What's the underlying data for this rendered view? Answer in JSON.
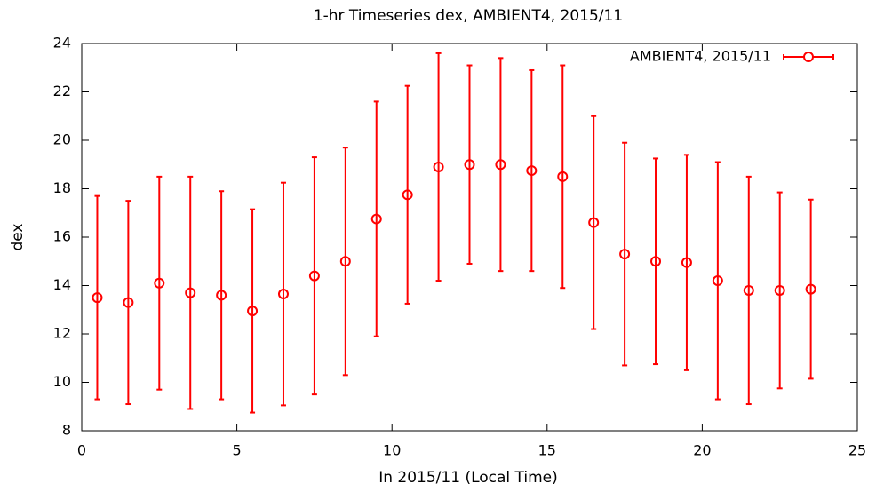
{
  "chart_data": {
    "type": "errorbar",
    "title": "1-hr Timeseries dex, AMBIENT4, 2015/11",
    "xlabel": "In 2015/11 (Local Time)",
    "ylabel": "dex",
    "x": [
      0.5,
      1.5,
      2.5,
      3.5,
      4.5,
      5.5,
      6.5,
      7.5,
      8.5,
      9.5,
      10.5,
      11.5,
      12.5,
      13.5,
      14.5,
      15.5,
      16.5,
      17.5,
      18.5,
      19.5,
      20.5,
      21.5,
      22.5,
      23.5
    ],
    "series": [
      {
        "name": "AMBIENT4, 2015/11",
        "color": "#ff0000",
        "values": [
          13.5,
          13.3,
          14.1,
          13.7,
          13.6,
          12.95,
          13.65,
          14.4,
          15.0,
          16.75,
          17.75,
          18.9,
          19.0,
          19.0,
          18.75,
          18.5,
          16.6,
          15.3,
          15.0,
          14.95,
          14.2,
          13.8,
          13.8,
          13.85
        ],
        "errors": [
          4.2,
          4.2,
          4.4,
          4.8,
          4.3,
          4.2,
          4.6,
          4.9,
          4.7,
          4.85,
          4.5,
          4.7,
          4.1,
          4.4,
          4.15,
          4.6,
          4.4,
          4.6,
          4.25,
          4.45,
          4.9,
          4.7,
          4.05,
          3.7
        ]
      }
    ],
    "xlim": [
      0,
      25
    ],
    "xticks": [
      0,
      5,
      10,
      15,
      20,
      25
    ],
    "ylim": [
      8,
      24
    ],
    "yticks": [
      8,
      10,
      12,
      14,
      16,
      18,
      20,
      22,
      24
    ],
    "legend": "top right"
  }
}
